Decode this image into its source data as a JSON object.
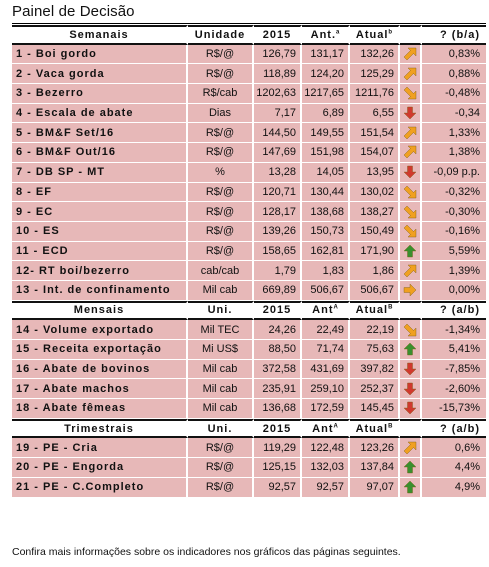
{
  "title": "Painel de Decisão",
  "footer": "Confira mais informações sobre os indicadores nos gráficos das páginas seguintes.",
  "colors": {
    "row_bg": "#e7b8b8",
    "up": "#3a8f2e",
    "down": "#d03a2e",
    "diag": "#f0a020"
  },
  "sections": [
    {
      "headers": {
        "name": "Semanais",
        "unit": "Unidade",
        "y": "2015",
        "ant": "Ant.",
        "ant_sup": "a",
        "atual": "Atual",
        "atual_sup": "b",
        "var": "? (b/a)"
      },
      "rows": [
        {
          "name": "1 - Boi gordo",
          "unit": "R$/@",
          "y": "126,79",
          "ant": "131,17",
          "atual": "132,26",
          "icon": "up-right",
          "var": "0,83%"
        },
        {
          "name": "2 - Vaca gorda",
          "unit": "R$/@",
          "y": "118,89",
          "ant": "124,20",
          "atual": "125,29",
          "icon": "up-right",
          "var": "0,88%"
        },
        {
          "name": "3 - Bezerro",
          "unit": "R$/cab",
          "y": "1202,63",
          "ant": "1217,65",
          "atual": "1211,76",
          "icon": "down-right",
          "var": "-0,48%"
        },
        {
          "name": "4 - Escala de abate",
          "unit": "Dias",
          "y": "7,17",
          "ant": "6,89",
          "atual": "6,55",
          "icon": "down",
          "var": "-0,34"
        },
        {
          "name": "5 - BM&F Set/16",
          "unit": "R$/@",
          "y": "144,50",
          "ant": "149,55",
          "atual": "151,54",
          "icon": "up-right",
          "var": "1,33%"
        },
        {
          "name": "6 - BM&F Out/16",
          "unit": "R$/@",
          "y": "147,69",
          "ant": "151,98",
          "atual": "154,07",
          "icon": "up-right",
          "var": "1,38%"
        },
        {
          "name": "7 - DB SP - MT",
          "unit": "%",
          "y": "13,28",
          "ant": "14,05",
          "atual": "13,95",
          "icon": "down",
          "var": "-0,09 p.p."
        },
        {
          "name": "8 - EF",
          "unit": "R$/@",
          "y": "120,71",
          "ant": "130,44",
          "atual": "130,02",
          "icon": "down-right",
          "var": "-0,32%"
        },
        {
          "name": "9 - EC",
          "unit": "R$/@",
          "y": "128,17",
          "ant": "138,68",
          "atual": "138,27",
          "icon": "down-right",
          "var": "-0,30%"
        },
        {
          "name": "10 - ES",
          "unit": "R$/@",
          "y": "139,26",
          "ant": "150,73",
          "atual": "150,49",
          "icon": "down-right",
          "var": "-0,16%"
        },
        {
          "name": "11 - ECD",
          "unit": "R$/@",
          "y": "158,65",
          "ant": "162,81",
          "atual": "171,90",
          "icon": "up",
          "var": "5,59%"
        },
        {
          "name": "12- RT boi/bezerro",
          "unit": "cab/cab",
          "y": "1,79",
          "ant": "1,83",
          "atual": "1,86",
          "icon": "up-right",
          "var": "1,39%"
        },
        {
          "name": "13 - Int. de confinamento",
          "unit": "Mil cab",
          "y": "669,89",
          "ant": "506,67",
          "atual": "506,67",
          "icon": "right",
          "var": "0,00%"
        }
      ]
    },
    {
      "headers": {
        "name": "Mensais",
        "unit": "Uni.",
        "y": "2015",
        "ant": "Ant",
        "ant_sup": "A",
        "atual": "Atual",
        "atual_sup": "B",
        "var": "? (a/b)"
      },
      "rows": [
        {
          "name": "14 - Volume exportado",
          "unit": "Mil TEC",
          "y": "24,26",
          "ant": "22,49",
          "atual": "22,19",
          "icon": "down-right",
          "var": "-1,34%"
        },
        {
          "name": "15 - Receita exportação",
          "unit": "Mi US$",
          "y": "88,50",
          "ant": "71,74",
          "atual": "75,63",
          "icon": "up",
          "var": "5,41%"
        },
        {
          "name": "16 - Abate de bovinos",
          "unit": "Mil cab",
          "y": "372,58",
          "ant": "431,69",
          "atual": "397,82",
          "icon": "down",
          "var": "-7,85%"
        },
        {
          "name": "17 - Abate machos",
          "unit": "Mil cab",
          "y": "235,91",
          "ant": "259,10",
          "atual": "252,37",
          "icon": "down",
          "var": "-2,60%"
        },
        {
          "name": "18 - Abate fêmeas",
          "unit": "Mil cab",
          "y": "136,68",
          "ant": "172,59",
          "atual": "145,45",
          "icon": "down",
          "var": "-15,73%"
        }
      ]
    },
    {
      "headers": {
        "name": "Trimestrais",
        "unit": "Uni.",
        "y": "2015",
        "ant": "Ant",
        "ant_sup": "A",
        "atual": "Atual",
        "atual_sup": "B",
        "var": "? (a/b)"
      },
      "rows": [
        {
          "name": "19 - PE - Cria",
          "unit": "R$/@",
          "y": "119,29",
          "ant": "122,48",
          "atual": "123,26",
          "icon": "up-right",
          "var": "0,6%"
        },
        {
          "name": "20 - PE - Engorda",
          "unit": "R$/@",
          "y": "125,15",
          "ant": "132,03",
          "atual": "137,84",
          "icon": "up",
          "var": "4,4%"
        },
        {
          "name": "21 - PE - C.Completo",
          "unit": "R$/@",
          "y": "92,57",
          "ant": "92,57",
          "atual": "97,07",
          "icon": "up",
          "var": "4,9%"
        }
      ]
    }
  ]
}
